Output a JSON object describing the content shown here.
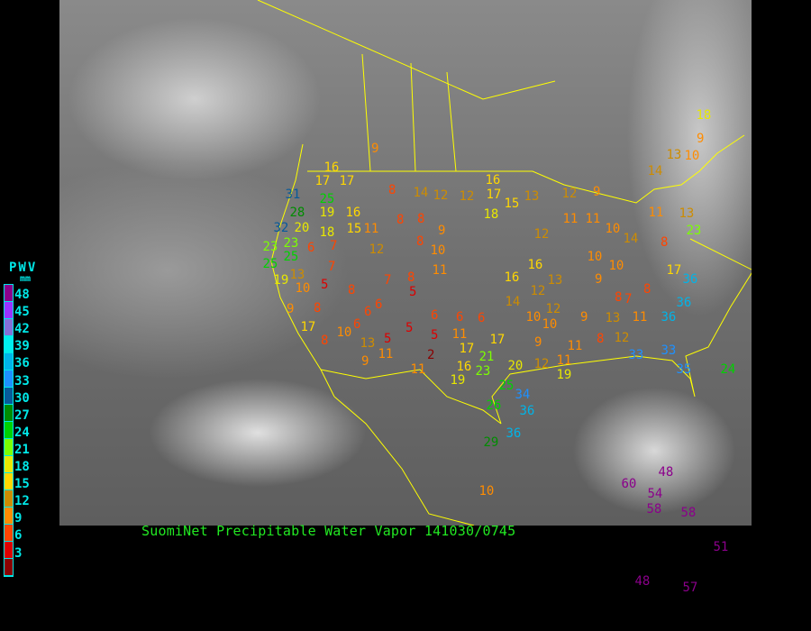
{
  "caption": "SuomiNet Precipitable Water Vapor 141030/0745",
  "legend": {
    "title": "PWV",
    "unit": "mm",
    "labels": [
      "48",
      "45",
      "42",
      "39",
      "36",
      "33",
      "30",
      "27",
      "24",
      "21",
      "18",
      "15",
      "12",
      "9",
      "6",
      "3"
    ],
    "colors": [
      "#8b008b",
      "#9a32ff",
      "#8470d8",
      "#00eeee",
      "#00b4e8",
      "#1e90ff",
      "#075a9a",
      "#008c00",
      "#00d200",
      "#7cff00",
      "#e8e800",
      "#ffd700",
      "#cd8c00",
      "#ff8c00",
      "#ff4500",
      "#dd0000",
      "#8b0000"
    ]
  },
  "map": {
    "imagery": "infrared satellite",
    "border_color": "#ffff00"
  },
  "stations": [
    9,
    16,
    17,
    17,
    31,
    28,
    25,
    19,
    16,
    18,
    20,
    32,
    23,
    23,
    15,
    11,
    8,
    14,
    12,
    12,
    17,
    16,
    15,
    13,
    18,
    8,
    8,
    9,
    8,
    10,
    11,
    12,
    7,
    6,
    25,
    25,
    19,
    10,
    13,
    9,
    5,
    7,
    7,
    8,
    5,
    8,
    6,
    17,
    8,
    10,
    8,
    6,
    6,
    13,
    9,
    11,
    5,
    5,
    6,
    5,
    2,
    11,
    6,
    6,
    17,
    11,
    17,
    21,
    23,
    16,
    19,
    20,
    25,
    12,
    11,
    19,
    9,
    10,
    16,
    16,
    13,
    14,
    10,
    12,
    12,
    9,
    13,
    8,
    11,
    12,
    8,
    11,
    33,
    33,
    35,
    24,
    36,
    36,
    36,
    17,
    8,
    7,
    23,
    8,
    13,
    11,
    14,
    10,
    11,
    11,
    10,
    10,
    9,
    12,
    12,
    9,
    13,
    10,
    14,
    18,
    9,
    26,
    34,
    36,
    36,
    29,
    10,
    60,
    54,
    48,
    58,
    58,
    51,
    48,
    57
  ]
}
